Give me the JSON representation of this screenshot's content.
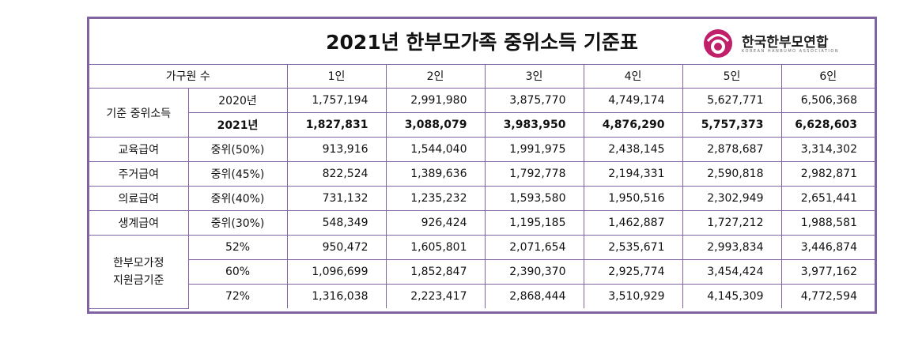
{
  "title": "2021년 한부모가족 중위소득 기준표",
  "logo": {
    "name": "한국한부모연합",
    "subtitle": "KOREAN HANBUMO ASSOCIATION"
  },
  "colors": {
    "border": "#8064a2",
    "logo": "#c0206a"
  },
  "header": {
    "household": "가구원 수",
    "cols": [
      "1인",
      "2인",
      "3인",
      "4인",
      "5인",
      "6인"
    ]
  },
  "median": {
    "label": "기준 중위소득",
    "rows": [
      {
        "sub": "2020년",
        "values": [
          "1,757,194",
          "2,991,980",
          "3,875,770",
          "4,749,174",
          "5,627,771",
          "6,506,368"
        ]
      },
      {
        "sub": "2021년",
        "values": [
          "1,827,831",
          "3,088,079",
          "3,983,950",
          "4,876,290",
          "5,757,373",
          "6,628,603"
        ]
      }
    ]
  },
  "benefits": [
    {
      "label": "교육급여",
      "sub": "중위(50%)",
      "values": [
        "913,916",
        "1,544,040",
        "1,991,975",
        "2,438,145",
        "2,878,687",
        "3,314,302"
      ]
    },
    {
      "label": "주거급여",
      "sub": "중위(45%)",
      "values": [
        "822,524",
        "1,389,636",
        "1,792,778",
        "2,194,331",
        "2,590,818",
        "2,982,871"
      ]
    },
    {
      "label": "의료급여",
      "sub": "중위(40%)",
      "values": [
        "731,132",
        "1,235,232",
        "1,593,580",
        "1,950,516",
        "2,302,949",
        "2,651,441"
      ]
    },
    {
      "label": "생계급여",
      "sub": "중위(30%)",
      "values": [
        "548,349",
        "926,424",
        "1,195,185",
        "1,462,887",
        "1,727,212",
        "1,988,581"
      ]
    }
  ],
  "single_parent": {
    "label_line1": "한부모가정",
    "label_line2": "지원금기준",
    "rows": [
      {
        "sub": "52%",
        "values": [
          "950,472",
          "1,605,801",
          "2,071,654",
          "2,535,671",
          "2,993,834",
          "3,446,874"
        ]
      },
      {
        "sub": "60%",
        "values": [
          "1,096,699",
          "1,852,847",
          "2,390,370",
          "2,925,774",
          "3,454,424",
          "3,977,162"
        ]
      },
      {
        "sub": "72%",
        "values": [
          "1,316,038",
          "2,223,417",
          "2,868,444",
          "3,510,929",
          "4,145,309",
          "4,772,594"
        ]
      }
    ]
  }
}
